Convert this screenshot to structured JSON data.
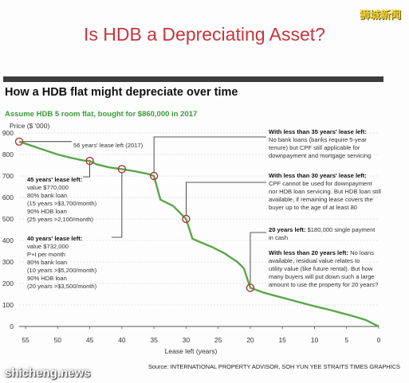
{
  "slide": {
    "title": "Is HDB a Depreciating Asset?",
    "watermark_cn": "狮城新闻",
    "watermark_en": "shicheng.news"
  },
  "chart_data": {
    "type": "line",
    "title": "How a HDB flat might depreciate over time",
    "subtitle": "Assume HDB 5 room flat, bought for $860,000 in 2017",
    "ylabel": "Price ($ '000)",
    "xlabel": "Lease left (years)",
    "xlim": [
      56,
      0
    ],
    "ylim": [
      0,
      900
    ],
    "x_ticks": [
      55,
      50,
      45,
      40,
      35,
      30,
      25,
      20,
      15,
      10,
      5,
      0
    ],
    "y_ticks": [
      0,
      100,
      200,
      300,
      400,
      500,
      600,
      700,
      800,
      900
    ],
    "grid": true,
    "series": [
      {
        "color": "#5aa64a",
        "x": [
          56,
          54,
          52,
          50,
          48,
          46,
          45,
          44,
          42,
          40,
          38,
          36,
          35,
          34,
          32,
          30,
          29,
          28,
          26,
          24,
          22,
          21,
          20,
          18,
          16,
          14,
          12,
          10,
          8,
          6,
          4,
          2,
          0
        ],
        "y": [
          860,
          840,
          820,
          800,
          785,
          772,
          770,
          755,
          740,
          732,
          722,
          710,
          700,
          590,
          560,
          500,
          408,
          395,
          370,
          340,
          300,
          270,
          180,
          158,
          142,
          126,
          110,
          94,
          80,
          64,
          48,
          30,
          0
        ]
      }
    ],
    "markers": [
      {
        "x": 56,
        "y": 860
      },
      {
        "x": 45,
        "y": 770
      },
      {
        "x": 40,
        "y": 732
      },
      {
        "x": 35,
        "y": 700
      },
      {
        "x": 30,
        "y": 500
      },
      {
        "x": 20,
        "y": 180
      }
    ],
    "annotations": [
      {
        "label": "56 years' lease left (2017)"
      },
      {
        "heading": "45 years' lease left:",
        "lines": [
          "value $770,000",
          "80% bank loan",
          "(15 years >$3,700/month)",
          "90% HDB loan",
          "(25 years >2,100/month)"
        ]
      },
      {
        "heading": "40 years' lease left:",
        "lines": [
          "value $732,000",
          "P+I per month",
          "80% bank loan",
          "(10 years >$5,200/month)",
          "90% HDB loan",
          "(20 years >$3,500/month)"
        ]
      },
      {
        "heading": "With less than 35 years' lease left:",
        "lines": [
          "No bank loans (banks require 5-year",
          "tenure) but CPF still applicable for",
          "downpayment and mortgage servicing"
        ]
      },
      {
        "heading": "With less than 30 years' lease left:",
        "lines": [
          "CPF cannot be used for downpayment",
          "nor HDB loan servicing. But HDB loan still",
          "available, if remaining lease covers the",
          "buyer up to the age of at least 80"
        ]
      },
      {
        "heading": "20 years left:",
        "text": "$180,000 single payment",
        "lines": [
          "in cash"
        ]
      },
      {
        "heading": "With less than 20 years left:",
        "text": "No loans",
        "lines": [
          "available, residual value relates to",
          "utility value (like future rental). But how",
          "many buyers will put down such a large",
          "amount to use the property for 20 years?"
        ]
      }
    ],
    "source": "Source: INTERNATIONAL PROPERTY ADVISOR, SOH YUN YEE   STRAITS TIMES GRAPHICS"
  }
}
